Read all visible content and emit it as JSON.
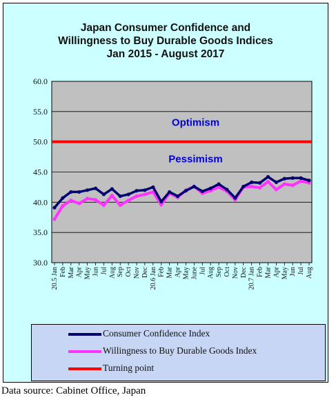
{
  "title_lines": [
    "Japan Consumer Confidence and",
    "Willingness to Buy Durable Goods Indices",
    "Jan 2015 - August  2017"
  ],
  "source": "Data source: Cabinet Office, Japan",
  "colors": {
    "frame": "#ccffff",
    "plot_bg": "#c0c0c0",
    "consumer_confidence": "#00006e",
    "willingness": "#ff33ff",
    "turning_point": "#ff0000",
    "annotation": "#0000dd"
  },
  "chart_data": {
    "type": "line",
    "title": "Japan Consumer Confidence and Willingness to Buy Durable Goods Indices Jan 2015 - August  2017",
    "ylim": [
      30.0,
      60.0
    ],
    "yticks": [
      "30.0",
      "35.0",
      "40.0",
      "45.0",
      "50.0",
      "55.0",
      "60.0"
    ],
    "grid": true,
    "legend_position": "bottom",
    "categories": [
      "20.5 Jan",
      "Feb",
      "Mar",
      "Apr",
      "May",
      "Jun",
      "Jul",
      "Aug",
      "Sep",
      "Oct",
      "Nov",
      "Dec",
      "20.6 Jan",
      "Feb",
      "Mar",
      "Apr",
      "May",
      "June",
      "Jul",
      "Aug",
      "Sep",
      "Oct",
      "Nov",
      "Dec",
      "20.7 Jan",
      "Feb",
      "Mar",
      "Apr",
      "May",
      "Jun",
      "Jul",
      "Aug"
    ],
    "series": [
      {
        "name": "Consumer Confidence Index",
        "values": [
          39.1,
          40.7,
          41.7,
          41.7,
          42.0,
          42.3,
          41.3,
          42.2,
          41.0,
          41.3,
          41.9,
          42.0,
          42.5,
          40.1,
          41.7,
          41.0,
          41.9,
          42.6,
          41.8,
          42.3,
          43.0,
          42.1,
          40.7,
          42.6,
          43.3,
          43.2,
          44.2,
          43.3,
          43.9,
          44.0,
          44.0,
          43.6
        ]
      },
      {
        "name": "Willingness to Buy Durable Goods Index",
        "values": [
          37.2,
          39.4,
          40.3,
          39.8,
          40.6,
          40.4,
          39.5,
          41.1,
          39.5,
          40.3,
          41.0,
          41.3,
          41.7,
          39.6,
          41.5,
          40.8,
          42.0,
          42.6,
          41.5,
          41.9,
          42.5,
          41.8,
          40.4,
          42.5,
          42.6,
          42.4,
          43.4,
          42.1,
          43.0,
          42.8,
          43.5,
          43.2
        ]
      },
      {
        "name": "Turning point",
        "constant": 50.0
      }
    ],
    "annotations": [
      {
        "text": "Optimism"
      },
      {
        "text": "Pessimism"
      }
    ]
  }
}
